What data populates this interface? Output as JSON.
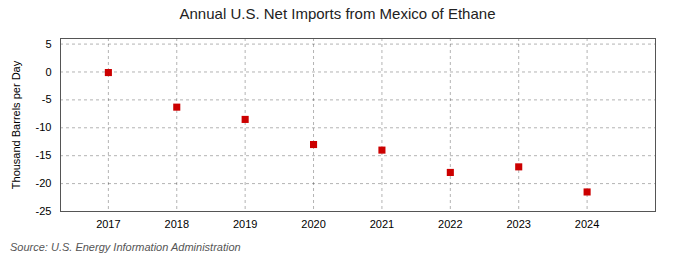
{
  "chart_data": {
    "type": "scatter",
    "title": "Annual U.S. Net Imports from Mexico of Ethane",
    "ylabel": "Thousand Barrels per Day",
    "annotations": [
      "Source: U.S. Energy Information Administration"
    ],
    "x": [
      2017,
      2018,
      2019,
      2020,
      2021,
      2022,
      2023,
      2024
    ],
    "values": [
      -0.1,
      -6.3,
      -8.5,
      -13.0,
      -14.0,
      -18.0,
      -17.0,
      -21.5
    ],
    "xlim": [
      2016.3,
      2025.0
    ],
    "xticks": [
      2017,
      2018,
      2019,
      2020,
      2021,
      2022,
      2023,
      2024
    ],
    "ylim": [
      -25,
      6
    ],
    "yticks": [
      5,
      0,
      -5,
      -10,
      -15,
      -20,
      -25
    ],
    "color": "#cc0000",
    "marker": "square",
    "grid": true
  }
}
